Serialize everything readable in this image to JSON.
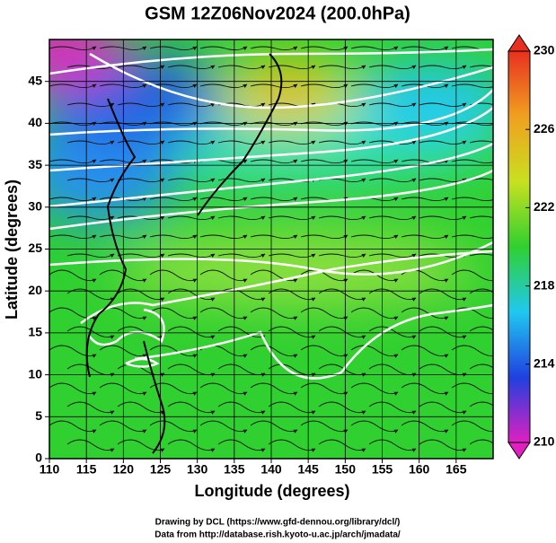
{
  "chart_data": {
    "type": "map",
    "title": "GSM 12Z06Nov2024 (200.0hPa)",
    "x_label": "Longitude (degrees)",
    "y_label": "Latitude  (degrees)",
    "xlim": [
      110,
      170
    ],
    "ylim": [
      0,
      50
    ],
    "xticks": [
      110,
      115,
      120,
      125,
      130,
      135,
      140,
      145,
      150,
      155,
      160,
      165
    ],
    "yticks": [
      0,
      5,
      10,
      15,
      20,
      25,
      30,
      35,
      40,
      45
    ],
    "grid": true,
    "colorbar": {
      "lim": [
        210,
        230
      ],
      "ticks": [
        210,
        214,
        218,
        222,
        226,
        230
      ],
      "colors": [
        "#e020c0",
        "#2040e0",
        "#20c8f0",
        "#30d030",
        "#c8e020",
        "#f0a020",
        "#e83020"
      ]
    },
    "footer": [
      "Drawing by DCL (https://www.gfd-dennou.org/library/dcl/)",
      "Data from http://database.rish.kyoto-u.ac.jp/arch/jmadata/"
    ]
  }
}
